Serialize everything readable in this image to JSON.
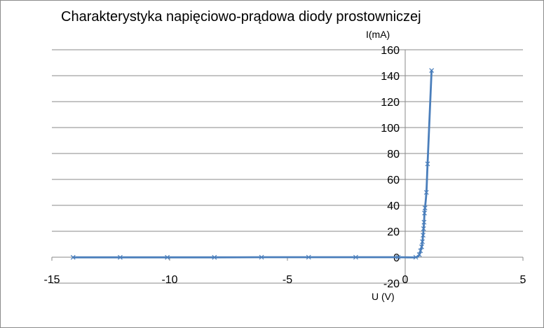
{
  "chart_data": {
    "type": "scatter",
    "title": "Charakterystyka napięciowo-prądowa diody prostowniczej",
    "xlabel": "U (V)",
    "ylabel": "I(mA)",
    "xlim": [
      -15,
      5
    ],
    "ylim": [
      -20,
      160
    ],
    "xticks": [
      -15,
      -10,
      -5,
      0,
      5
    ],
    "yticks": [
      -20,
      0,
      20,
      40,
      60,
      80,
      100,
      120,
      140,
      160
    ],
    "grid": true,
    "legend": "none",
    "series": [
      {
        "color": "#4a7ebb",
        "marker": "x",
        "line": "smooth",
        "x": [
          -14.1,
          -12.1,
          -10.1,
          -8.1,
          -6.1,
          -4.1,
          -2.1,
          -0.3,
          0.45,
          0.6,
          0.65,
          0.7,
          0.73,
          0.76,
          0.78,
          0.8,
          0.82,
          0.84,
          0.9,
          0.95,
          1.12
        ],
        "y": [
          -0.1,
          -0.1,
          -0.1,
          -0.1,
          0,
          0,
          0,
          0,
          0,
          2,
          5,
          8,
          12,
          17,
          22,
          27,
          34,
          38,
          50,
          72,
          144
        ]
      }
    ]
  }
}
